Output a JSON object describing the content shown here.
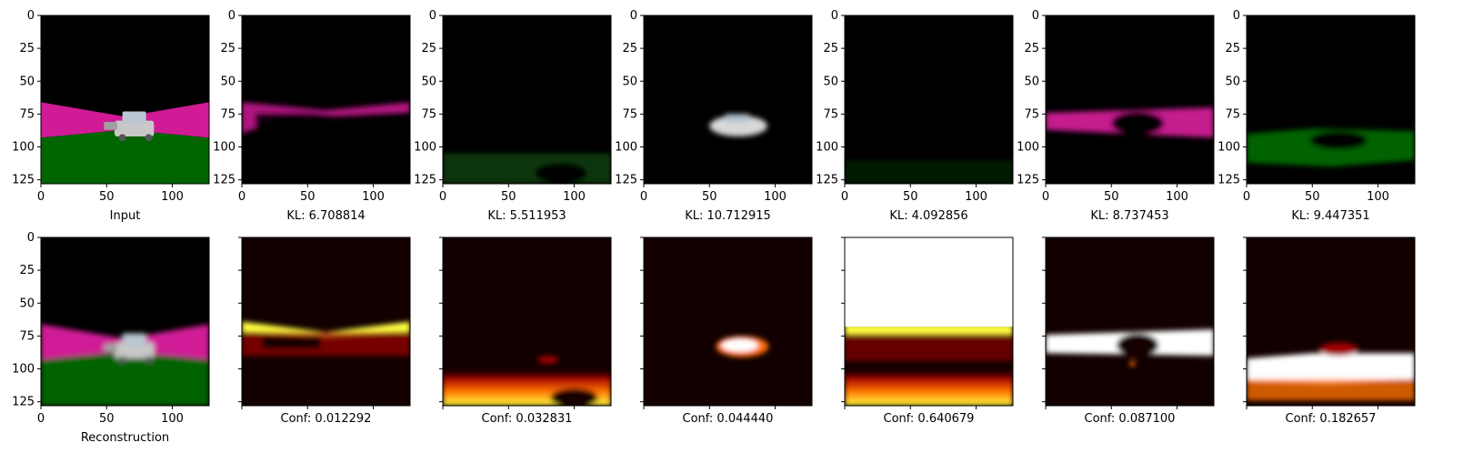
{
  "chart_data": {
    "type": "image-grid",
    "image_size": [
      128,
      128
    ],
    "x_ticks": [
      0,
      50,
      100
    ],
    "y_ticks": [
      0,
      25,
      50,
      75,
      100,
      125
    ],
    "colors": {
      "road_magenta": "#d01a96",
      "ground_green": "#006400",
      "sky_black": "#000000",
      "car_gray": "#c8c8c8",
      "heat_dark": "#120000",
      "heat_red": "#a00000",
      "heat_orange": "#ff7000",
      "heat_yellow": "#ffff40",
      "heat_white": "#ffffff"
    },
    "rows": [
      {
        "row": "top",
        "panels": [
          {
            "label": "Input",
            "kind": "scene",
            "show_y_ticks": true
          },
          {
            "label": "KL: 6.708814",
            "kind": "magenta_band_partial",
            "show_y_ticks": true
          },
          {
            "label": "KL: 5.511953",
            "kind": "green_faint",
            "show_y_ticks": true
          },
          {
            "label": "KL: 10.712915",
            "kind": "car_only",
            "show_y_ticks": true
          },
          {
            "label": "KL: 4.092856",
            "kind": "green_very_faint",
            "show_y_ticks": true
          },
          {
            "label": "KL: 8.737453",
            "kind": "magenta_band",
            "show_y_ticks": true
          },
          {
            "label": "KL: 9.447351",
            "kind": "green_band",
            "show_y_ticks": true
          }
        ]
      },
      {
        "row": "bottom",
        "panels": [
          {
            "label": "Reconstruction",
            "kind": "scene_blur",
            "show_y_ticks": true
          },
          {
            "label": "Conf: 0.012292",
            "kind": "heat_band_top",
            "show_y_ticks": false
          },
          {
            "label": "Conf: 0.032831",
            "kind": "heat_bottom",
            "show_y_ticks": false
          },
          {
            "label": "Conf: 0.044440",
            "kind": "heat_car",
            "show_y_ticks": false
          },
          {
            "label": "Conf: 0.640679",
            "kind": "heat_white_top",
            "show_y_ticks": false
          },
          {
            "label": "Conf: 0.087100",
            "kind": "heat_band_white",
            "show_y_ticks": false
          },
          {
            "label": "Conf: 0.182657",
            "kind": "heat_low_white",
            "show_y_ticks": false
          }
        ]
      }
    ]
  }
}
